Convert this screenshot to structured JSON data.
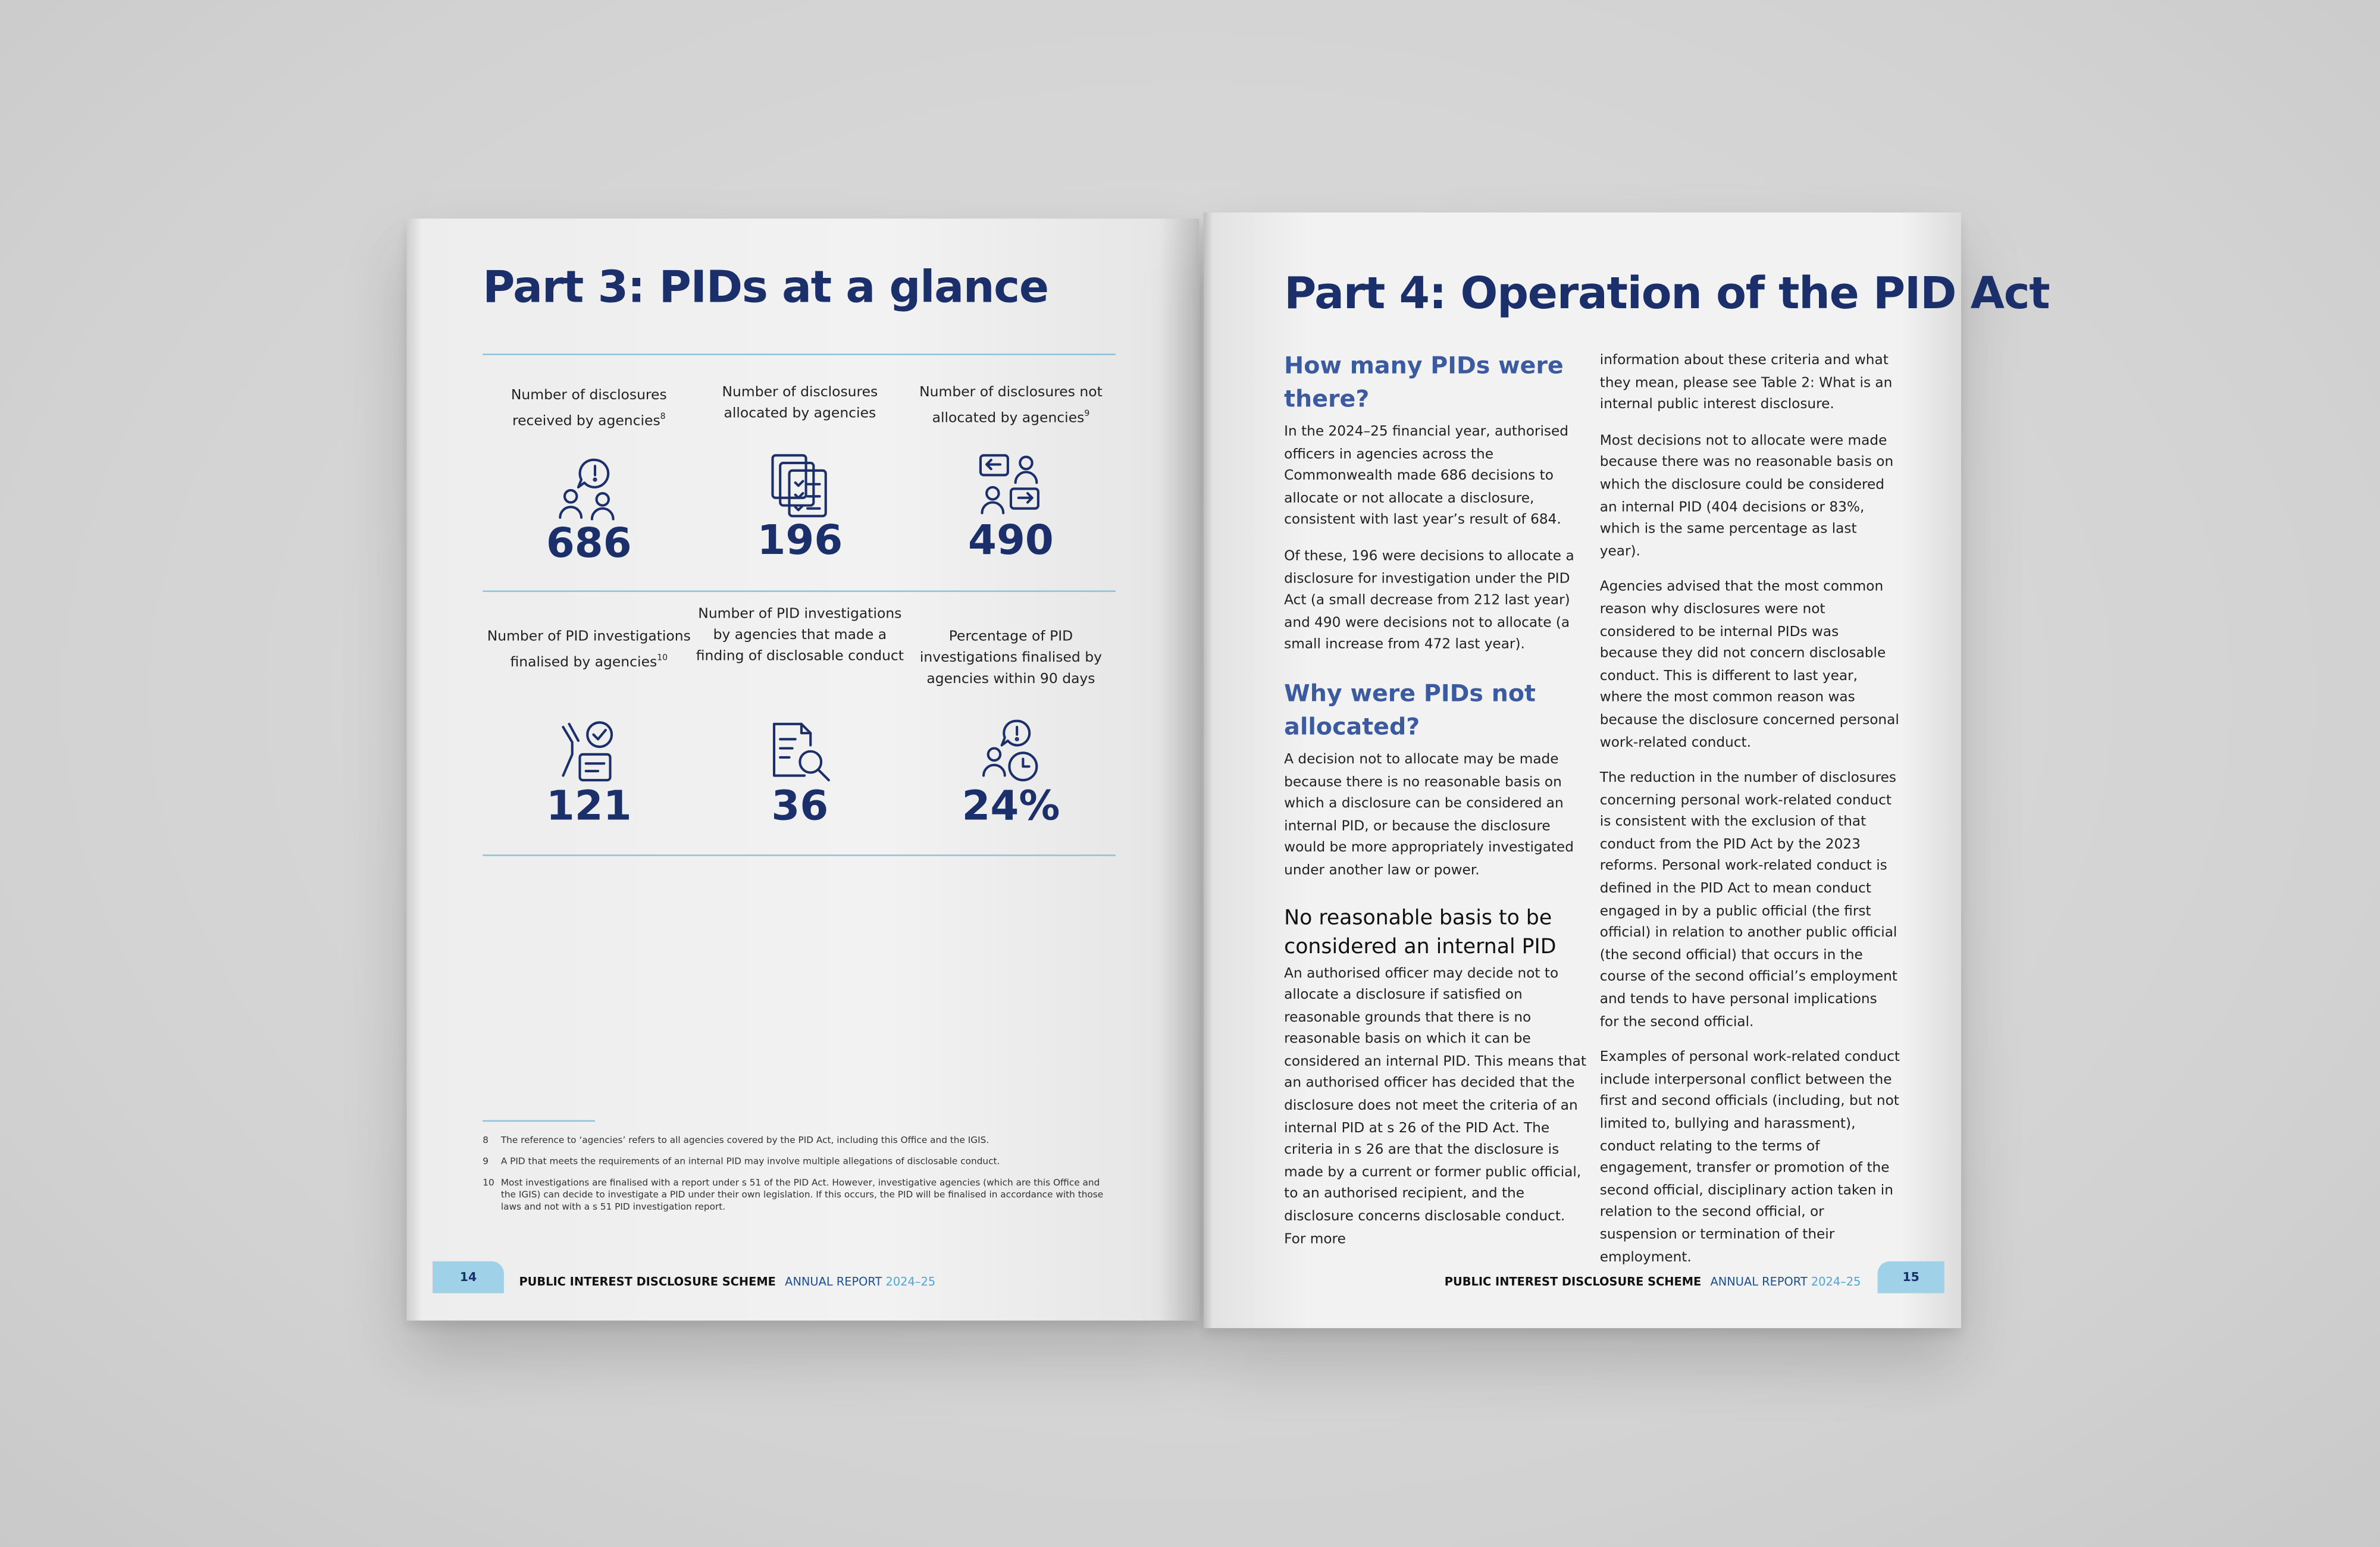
{
  "left_page": {
    "title": "Part 3: PIDs at a glance",
    "stats": [
      {
        "label": "Number of disclosures received by agencies",
        "note": "8",
        "value": "686"
      },
      {
        "label": "Number of disclosures allocated by agencies",
        "value": "196"
      },
      {
        "label": "Number of disclosures not allocated by agencies",
        "note": "9",
        "value": "490"
      },
      {
        "label": "Number of PID investigations finalised by agencies",
        "note": "10",
        "value": "121"
      },
      {
        "label": "Number of PID investigations by agencies that made a finding of disclosable conduct",
        "value": "36"
      },
      {
        "label": "Percentage of PID investigations finalised by agencies within 90 days",
        "value": "24%"
      }
    ],
    "footnotes": [
      {
        "number": "8",
        "text": "The reference to ‘agencies’ refers to all agencies covered by the PID Act, including this Office and the IGIS."
      },
      {
        "number": "9",
        "text": "A PID that meets the requirements of an internal PID may involve multiple allegations of disclosable conduct."
      },
      {
        "number": "10",
        "text": "Most investigations are finalised with a report under s 51 of the PID Act. However, investigative agencies (which are this Office and the IGIS) can decide to investigate a PID under their own legislation. If this occurs, the PID will be finalised in accordance with those laws and not with a s 51 PID investigation report."
      }
    ],
    "footer": {
      "page_number": "14",
      "publication": "PUBLIC INTEREST DISCLOSURE SCHEME",
      "report": "ANNUAL REPORT",
      "year": "2024–25"
    }
  },
  "right_page": {
    "title": "Part 4: Operation of the PID Act",
    "column_1": [
      {
        "heading": "How many PIDs were there?",
        "paragraphs": [
          "In the 2024–25 financial year, authorised officers in agencies across the Commonwealth made 686 decisions to allocate or not allocate a disclosure, consistent with last year’s result of 684.",
          "Of these, 196 were decisions to allocate a disclosure for investigation under the PID Act (a small decrease from 212 last year) and 490 were decisions not to allocate (a small increase from 472 last year)."
        ]
      },
      {
        "heading": "Why were PIDs not allocated?",
        "paragraphs": [
          "A decision not to allocate may be made because there is no reasonable basis on which a disclosure can be considered an internal PID, or because the disclosure would be more appropriately investigated under another law or power."
        ]
      },
      {
        "subheading": "No reasonable basis to be considered an internal PID",
        "paragraphs": [
          "An authorised officer may decide not to allocate a disclosure if satisfied on reasonable grounds that there is no reasonable basis on which it can be considered an internal PID. This means that an authorised officer has decided that the disclosure does not meet the criteria of an internal PID at s 26 of the PID Act. The criteria in s 26 are that the disclosure is made by a current or former public official, to an authorised recipient, and the disclosure concerns disclosable conduct. For more"
        ]
      }
    ],
    "column_2": [
      "information about these criteria and what they mean, please see Table 2: What is an internal public interest disclosure.",
      "Most decisions not to allocate were made because there was no reasonable basis on which the disclosure could be considered an internal PID (404 decisions or 83%, which is the same percentage as last year).",
      "Agencies advised that the most common reason why disclosures were not considered to be internal PIDs was because they did not concern disclosable conduct. This is different to last year, where the most common reason was because the disclosure concerned personal work-related conduct.",
      "The reduction in the number of disclosures concerning personal work-related conduct is consistent with the exclusion of that conduct from the PID Act by the 2023 reforms. Personal work-related conduct is defined in the PID Act to mean conduct engaged in by a public official (the first official) in relation to another public official (the second official) that occurs in the course of the second official’s employment and tends to have personal implications for the second official.",
      "Examples of personal work-related conduct include interpersonal conflict between the first and second officials (including, but not limited to, bullying and harassment), conduct relating to the terms of engagement, transfer or promotion of the second official, disciplinary action taken in relation to the second official, or suspension or termination of their employment."
    ],
    "footer": {
      "page_number": "15",
      "publication": "PUBLIC INTEREST DISCLOSURE SCHEME",
      "report": "ANNUAL REPORT",
      "year": "2024–25"
    }
  }
}
